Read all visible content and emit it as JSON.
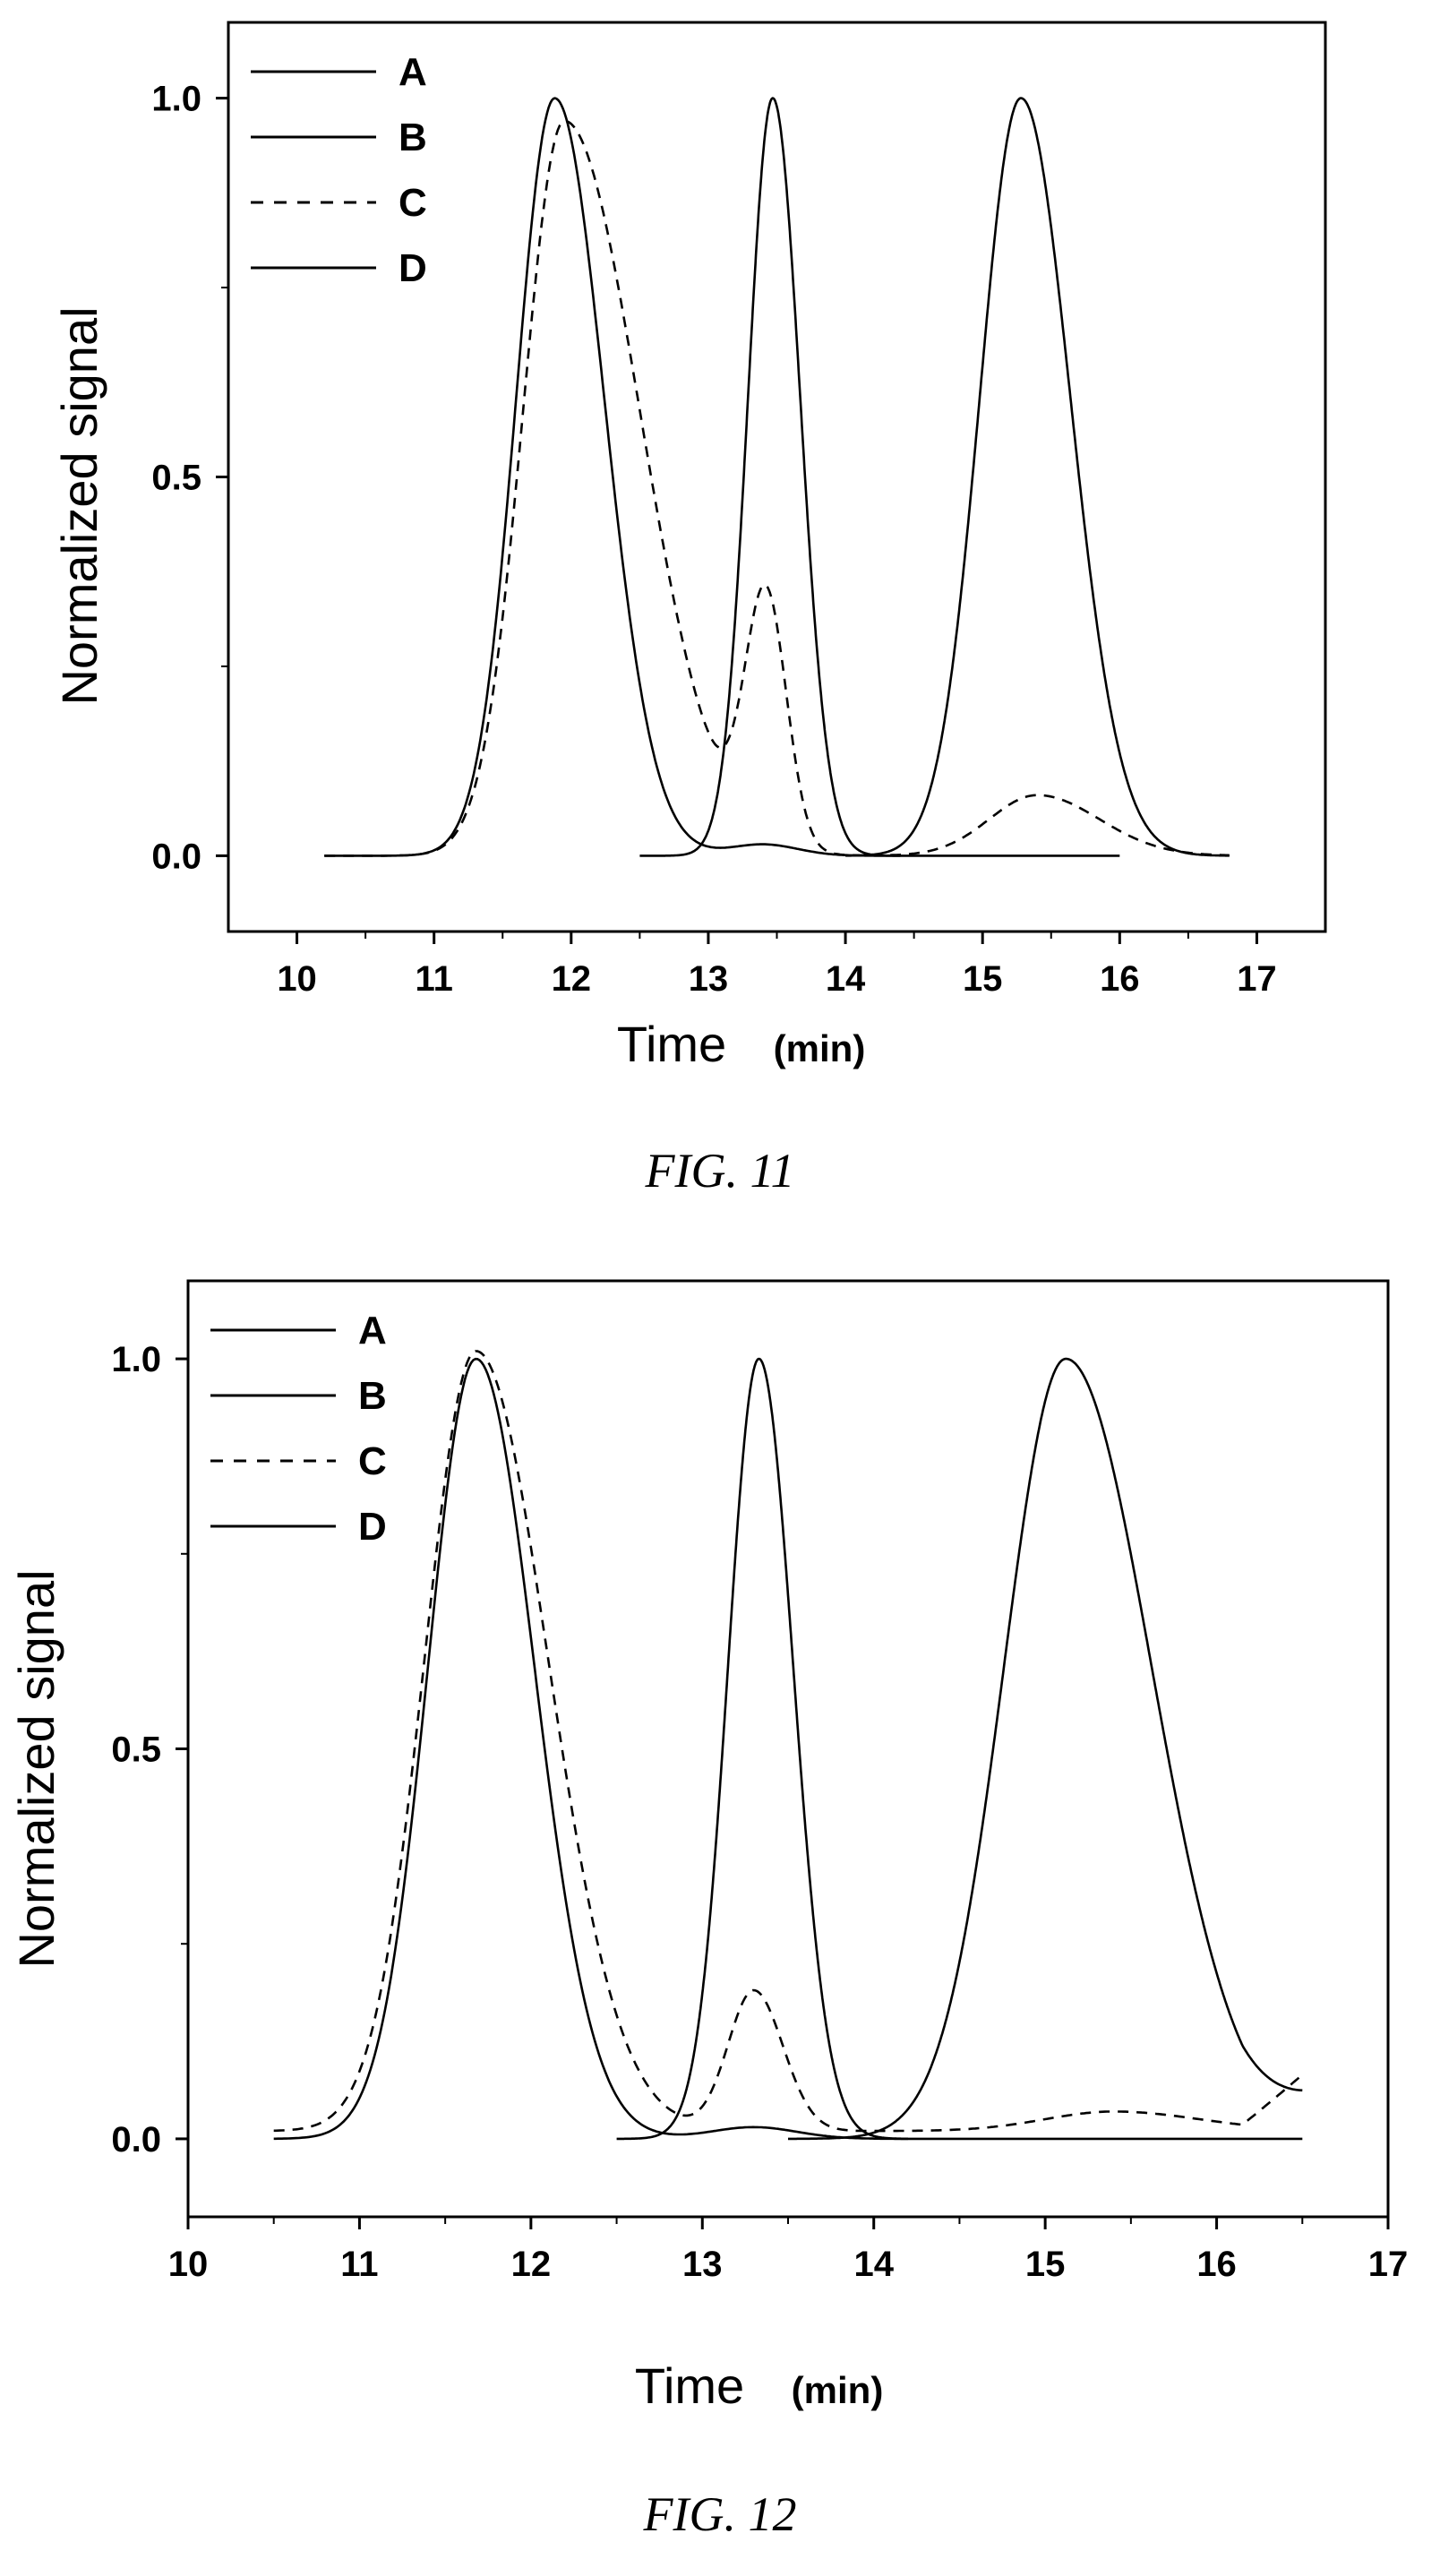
{
  "chart_data": [
    {
      "type": "line",
      "figure_label": "FIG. 11",
      "xlabel": "Time",
      "xlabel_unit": "(min)",
      "ylabel": "Normalized signal",
      "xlim": [
        9.5,
        17.5
      ],
      "ylim": [
        -0.1,
        1.1
      ],
      "xticks": [
        10,
        11,
        12,
        13,
        14,
        15,
        16,
        17
      ],
      "yticks": [
        0.0,
        0.5,
        1.0
      ],
      "ytick_labels": [
        "0.0",
        "0.5",
        "1.0"
      ],
      "grid": false,
      "legend_position": "top-left",
      "series": [
        {
          "name": "A",
          "style": "solid",
          "peaks": [
            {
              "x": 15.28,
              "h": 1.0,
              "wl": 0.3,
              "wr": 0.36
            }
          ],
          "baseline": 0.0,
          "x_range": [
            14.0,
            16.8
          ]
        },
        {
          "name": "B",
          "style": "solid",
          "peaks": [
            {
              "x": 13.47,
              "h": 1.0,
              "wl": 0.18,
              "wr": 0.2
            }
          ],
          "baseline": 0.0,
          "x_range": [
            12.5,
            14.4
          ]
        },
        {
          "name": "C",
          "style": "dashed",
          "peaks": [
            {
              "x": 11.95,
              "h": 0.97,
              "wl": 0.3,
              "wr": 0.55
            },
            {
              "x": 13.42,
              "h": 0.33,
              "wl": 0.15,
              "wr": 0.15
            },
            {
              "x": 15.4,
              "h": 0.08,
              "wl": 0.35,
              "wr": 0.45
            }
          ],
          "baseline": 0.0,
          "x_range": [
            10.2,
            16.8
          ]
        },
        {
          "name": "D",
          "style": "solid",
          "peaks": [
            {
              "x": 11.88,
              "h": 1.0,
              "wl": 0.28,
              "wr": 0.36
            },
            {
              "x": 13.4,
              "h": 0.015,
              "wl": 0.25,
              "wr": 0.25
            }
          ],
          "baseline": 0.0,
          "x_range": [
            10.2,
            16.0
          ]
        }
      ]
    },
    {
      "type": "line",
      "figure_label": "FIG. 12",
      "xlabel": "Time",
      "xlabel_unit": "(min)",
      "ylabel": "Normalized signal",
      "xlim": [
        10,
        17
      ],
      "ylim": [
        -0.1,
        1.1
      ],
      "xticks": [
        10,
        11,
        12,
        13,
        14,
        15,
        16,
        17
      ],
      "yticks": [
        0.0,
        0.5,
        1.0
      ],
      "ytick_labels": [
        "0.0",
        "0.5",
        "1.0"
      ],
      "grid": false,
      "legend_position": "top-left",
      "series": [
        {
          "name": "A",
          "style": "solid",
          "peaks": [
            {
              "x": 15.12,
              "h": 1.0,
              "wl": 0.36,
              "wr": 0.5
            }
          ],
          "baseline": 0.0,
          "x_range": [
            13.5,
            16.5
          ],
          "tail": 0.04
        },
        {
          "name": "B",
          "style": "solid",
          "peaks": [
            {
              "x": 13.33,
              "h": 1.0,
              "wl": 0.18,
              "wr": 0.2
            }
          ],
          "baseline": 0.0,
          "x_range": [
            12.5,
            14.2
          ]
        },
        {
          "name": "C",
          "style": "dashed",
          "peaks": [
            {
              "x": 11.68,
              "h": 1.0,
              "wl": 0.3,
              "wr": 0.42
            },
            {
              "x": 13.3,
              "h": 0.18,
              "wl": 0.15,
              "wr": 0.17
            },
            {
              "x": 15.4,
              "h": 0.025,
              "wl": 0.4,
              "wr": 0.5
            }
          ],
          "baseline": 0.01,
          "x_range": [
            10.5,
            16.5
          ],
          "tail": 0.07
        },
        {
          "name": "D",
          "style": "solid",
          "peaks": [
            {
              "x": 11.68,
              "h": 1.0,
              "wl": 0.28,
              "wr": 0.34
            },
            {
              "x": 13.3,
              "h": 0.015,
              "wl": 0.25,
              "wr": 0.25
            }
          ],
          "baseline": 0.0,
          "x_range": [
            10.5,
            16.5
          ]
        }
      ]
    }
  ]
}
